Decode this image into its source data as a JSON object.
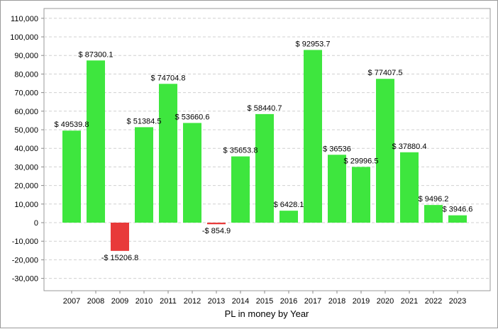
{
  "chart_data": {
    "type": "bar",
    "title": "",
    "xlabel": "PL in money by Year",
    "ylabel": "",
    "ylim": [
      -40000,
      112000
    ],
    "yticks": [
      -30000,
      -20000,
      -10000,
      0,
      10000,
      20000,
      30000,
      40000,
      50000,
      60000,
      70000,
      80000,
      90000,
      100000,
      110000
    ],
    "ytick_labels": [
      "-30,000",
      "-20,000",
      "-10,000",
      "0",
      "10,000",
      "20,000",
      "30,000",
      "40,000",
      "50,000",
      "60,000",
      "70,000",
      "80,000",
      "90,000",
      "100,000",
      "110,000"
    ],
    "grid": "horizontal-dashed",
    "categories": [
      "2007",
      "2008",
      "2009",
      "2010",
      "2011",
      "2012",
      "2013",
      "2014",
      "2015",
      "2016",
      "2017",
      "2018",
      "2019",
      "2020",
      "2021",
      "2022",
      "2023"
    ],
    "values": [
      49539.8,
      87300.1,
      -15206.8,
      51384.5,
      74704.8,
      53660.6,
      -854.9,
      35653.8,
      58440.7,
      6428.1,
      92953.7,
      36536,
      29996.5,
      77407.5,
      37880.4,
      9496.2,
      3946.6
    ],
    "data_labels": [
      "$ 49539.8",
      "$ 87300.1",
      "-$ 15206.8",
      "$ 51384.5",
      "$ 74704.8",
      "$ 53660.6",
      "-$ 854.9",
      "$ 35653.8",
      "$ 58440.7",
      "$ 6428.1",
      "$ 92953.7",
      "$ 36536",
      "$ 29996.5",
      "$ 77407.5",
      "$ 37880.4",
      "$ 9496.2",
      "$ 3946.6"
    ],
    "colors": {
      "positive": "#3ee63e",
      "negative": "#e83a3a",
      "grid": "#d0d0d0",
      "axis": "#888888"
    }
  }
}
